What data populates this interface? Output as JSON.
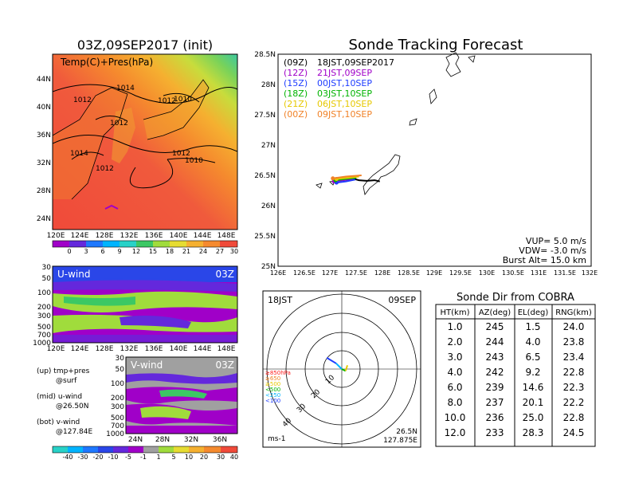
{
  "left": {
    "map_title": "03Z,09SEP2017 (init)",
    "map_label": "Temp(C)+Pres(hPa)",
    "map_lat_ticks": [
      "44N",
      "40N",
      "36N",
      "32N",
      "28N",
      "24N"
    ],
    "map_lon_ticks": [
      "120E",
      "124E",
      "128E",
      "132E",
      "136E",
      "140E",
      "144E",
      "148E"
    ],
    "isobar_labels": [
      "1014",
      "1012",
      "1012",
      "1012",
      "1010",
      "1014",
      "1012",
      "1012",
      "1010",
      "1012"
    ],
    "temp_cbar_ticks": [
      "0",
      "3",
      "6",
      "9",
      "12",
      "15",
      "18",
      "21",
      "24",
      "27",
      "30"
    ],
    "u_label": "U-wind",
    "u_time": "03Z",
    "u_p_ticks": [
      "30",
      "50",
      "100",
      "200",
      "300",
      "500",
      "700",
      "1000"
    ],
    "u_lon_ticks": [
      "120E",
      "124E",
      "128E",
      "132E",
      "136E",
      "140E",
      "144E",
      "148E"
    ],
    "v_label": "V-wind",
    "v_time": "03Z",
    "v_p_ticks": [
      "30",
      "50",
      "100",
      "200",
      "300",
      "500",
      "700",
      "1000"
    ],
    "v_lat_ticks": [
      "24N",
      "28N",
      "32N",
      "36N"
    ],
    "notes": [
      {
        "a": "(up)  tmp+pres",
        "b": "@surf"
      },
      {
        "a": "(mid)  u-wind",
        "b": "@26.50N"
      },
      {
        "a": "(bot)  v-wind",
        "b": "@127.84E"
      }
    ],
    "wind_cbar_ticks": [
      "-40",
      "-30",
      "-20",
      "-10",
      "-5",
      "-1",
      "1",
      "5",
      "10",
      "20",
      "30",
      "40"
    ]
  },
  "track": {
    "title": "Sonde Tracking Forecast",
    "legend": [
      {
        "code": "(09Z)",
        "time": "18JST,09SEP2017",
        "color": "#000000"
      },
      {
        "code": "(12Z)",
        "time": "21JST,09SEP",
        "color": "#a000c8"
      },
      {
        "code": "(15Z)",
        "time": "00JST,10SEP",
        "color": "#1e3cff"
      },
      {
        "code": "(18Z)",
        "time": "03JST,10SEP",
        "color": "#00b400"
      },
      {
        "code": "(21Z)",
        "time": "06JST,10SEP",
        "color": "#e6c800"
      },
      {
        "code": "(00Z)",
        "time": "09JST,10SEP",
        "color": "#f08228"
      }
    ],
    "lat_ticks": [
      "28.5N",
      "28N",
      "27.5N",
      "27N",
      "26.5N",
      "26N",
      "25.5N",
      "25N"
    ],
    "lon_ticks": [
      "126E",
      "126.5E",
      "127E",
      "127.5E",
      "128E",
      "128.5E",
      "129E",
      "129.5E",
      "130E",
      "130.5E",
      "131E",
      "131.5E",
      "132E"
    ],
    "params": [
      "VUP= 5.0 m/s",
      "VDW= -3.0 m/s",
      "Burst Alt= 15.0 km"
    ]
  },
  "polar": {
    "time_label": "18JST",
    "date_label": "09SEP",
    "ring_labels": [
      "10",
      "20",
      "30",
      "40"
    ],
    "press_legend": [
      {
        "text": "≥850hPa",
        "color": "#ff2020"
      },
      {
        "text": "≥650",
        "color": "#f08228"
      },
      {
        "text": "≥500",
        "color": "#e6c800"
      },
      {
        "text": "<500",
        "color": "#00b400"
      },
      {
        "text": "<250",
        "color": "#00b4ff"
      },
      {
        "text": "<100",
        "color": "#1e3cff"
      }
    ],
    "units": "ms-1",
    "loc_lat": "26.5N",
    "loc_lon": "127.875E"
  },
  "sonde_table": {
    "title": "Sonde Dir from COBRA",
    "headers": [
      "HT(km)",
      "AZ(deg)",
      "EL(deg)",
      "RNG(km)"
    ],
    "rows": [
      [
        "1.0",
        "245",
        "1.5",
        "24.0"
      ],
      [
        "2.0",
        "244",
        "4.0",
        "23.8"
      ],
      [
        "3.0",
        "243",
        "6.5",
        "23.4"
      ],
      [
        "4.0",
        "242",
        "9.2",
        "22.8"
      ],
      [
        "6.0",
        "239",
        "14.6",
        "22.3"
      ],
      [
        "8.0",
        "237",
        "20.1",
        "22.2"
      ],
      [
        "10.0",
        "236",
        "25.0",
        "22.8"
      ],
      [
        "12.0",
        "233",
        "28.3",
        "24.5"
      ]
    ]
  },
  "chart_data": [
    {
      "type": "heatmap",
      "title": "03Z,09SEP2017 (init)",
      "label": "Temp(C)+Pres(hPa)",
      "x_ticks": [
        "120E",
        "124E",
        "128E",
        "132E",
        "136E",
        "140E",
        "144E",
        "148E"
      ],
      "y_ticks": [
        "24N",
        "28N",
        "32N",
        "36N",
        "40N",
        "44N"
      ],
      "colorbar": [
        0,
        3,
        6,
        9,
        12,
        15,
        18,
        21,
        24,
        27,
        30
      ],
      "contour_labels": [
        "1010",
        "1012",
        "1014"
      ]
    },
    {
      "type": "heatmap",
      "title": "U-wind",
      "label": "03Z",
      "x_ticks": [
        "120E",
        "124E",
        "128E",
        "132E",
        "136E",
        "140E",
        "144E",
        "148E"
      ],
      "y_ticks": [
        "30",
        "50",
        "100",
        "200",
        "300",
        "500",
        "700",
        "1000"
      ]
    },
    {
      "type": "heatmap",
      "title": "V-wind",
      "label": "03Z",
      "x_ticks": [
        "24N",
        "28N",
        "32N",
        "36N"
      ],
      "y_ticks": [
        "30",
        "50",
        "100",
        "200",
        "300",
        "500",
        "700",
        "1000"
      ],
      "colorbar": [
        -40,
        -30,
        -20,
        -10,
        -5,
        -1,
        1,
        5,
        10,
        20,
        30,
        40
      ]
    },
    {
      "type": "line",
      "title": "Sonde Tracking Forecast",
      "xlim": [
        126,
        132
      ],
      "ylim": [
        25,
        28.5
      ],
      "series": [
        {
          "name": "(09Z) 18JST,09SEP2017",
          "x": [
            127.42,
            127.55,
            127.7,
            127.85,
            127.95
          ],
          "y": [
            26.45,
            26.42,
            26.41,
            26.42,
            26.4
          ]
        },
        {
          "name": "(12Z) 21JST,09SEP",
          "x": [
            127.07,
            127.25,
            127.45
          ],
          "y": [
            26.4,
            26.42,
            26.44
          ]
        },
        {
          "name": "(15Z) 00JST,10SEP",
          "x": [
            127.12,
            127.3,
            127.48
          ],
          "y": [
            26.38,
            26.4,
            26.43
          ]
        },
        {
          "name": "(18Z) 03JST,10SEP",
          "x": [
            127.1,
            127.3,
            127.5
          ],
          "y": [
            26.42,
            26.44,
            26.46
          ]
        },
        {
          "name": "(21Z) 06JST,10SEP",
          "x": [
            127.12,
            127.35,
            127.55
          ],
          "y": [
            26.44,
            26.46,
            26.48
          ]
        },
        {
          "name": "(00Z) 09JST,10SEP",
          "x": [
            127.05,
            127.3,
            127.6
          ],
          "y": [
            26.45,
            26.48,
            26.5
          ]
        }
      ]
    },
    {
      "type": "scatter",
      "title": "18JST 09SEP",
      "units": "ms-1",
      "rings": [
        10,
        20,
        30,
        40
      ],
      "series": [
        {
          "name": "wind profile",
          "x": [
            -8,
            -3,
            0,
            2,
            3
          ],
          "y": [
            6,
            3,
            0,
            -1,
            2
          ]
        }
      ]
    },
    {
      "type": "table",
      "title": "Sonde Dir from COBRA",
      "columns": [
        "HT(km)",
        "AZ(deg)",
        "EL(deg)",
        "RNG(km)"
      ],
      "rows": [
        [
          "1.0",
          "245",
          "1.5",
          "24.0"
        ],
        [
          "2.0",
          "244",
          "4.0",
          "23.8"
        ],
        [
          "3.0",
          "243",
          "6.5",
          "23.4"
        ],
        [
          "4.0",
          "242",
          "9.2",
          "22.8"
        ],
        [
          "6.0",
          "239",
          "14.6",
          "22.3"
        ],
        [
          "8.0",
          "237",
          "20.1",
          "22.2"
        ],
        [
          "10.0",
          "236",
          "25.0",
          "22.8"
        ],
        [
          "12.0",
          "233",
          "28.3",
          "24.5"
        ]
      ]
    }
  ]
}
